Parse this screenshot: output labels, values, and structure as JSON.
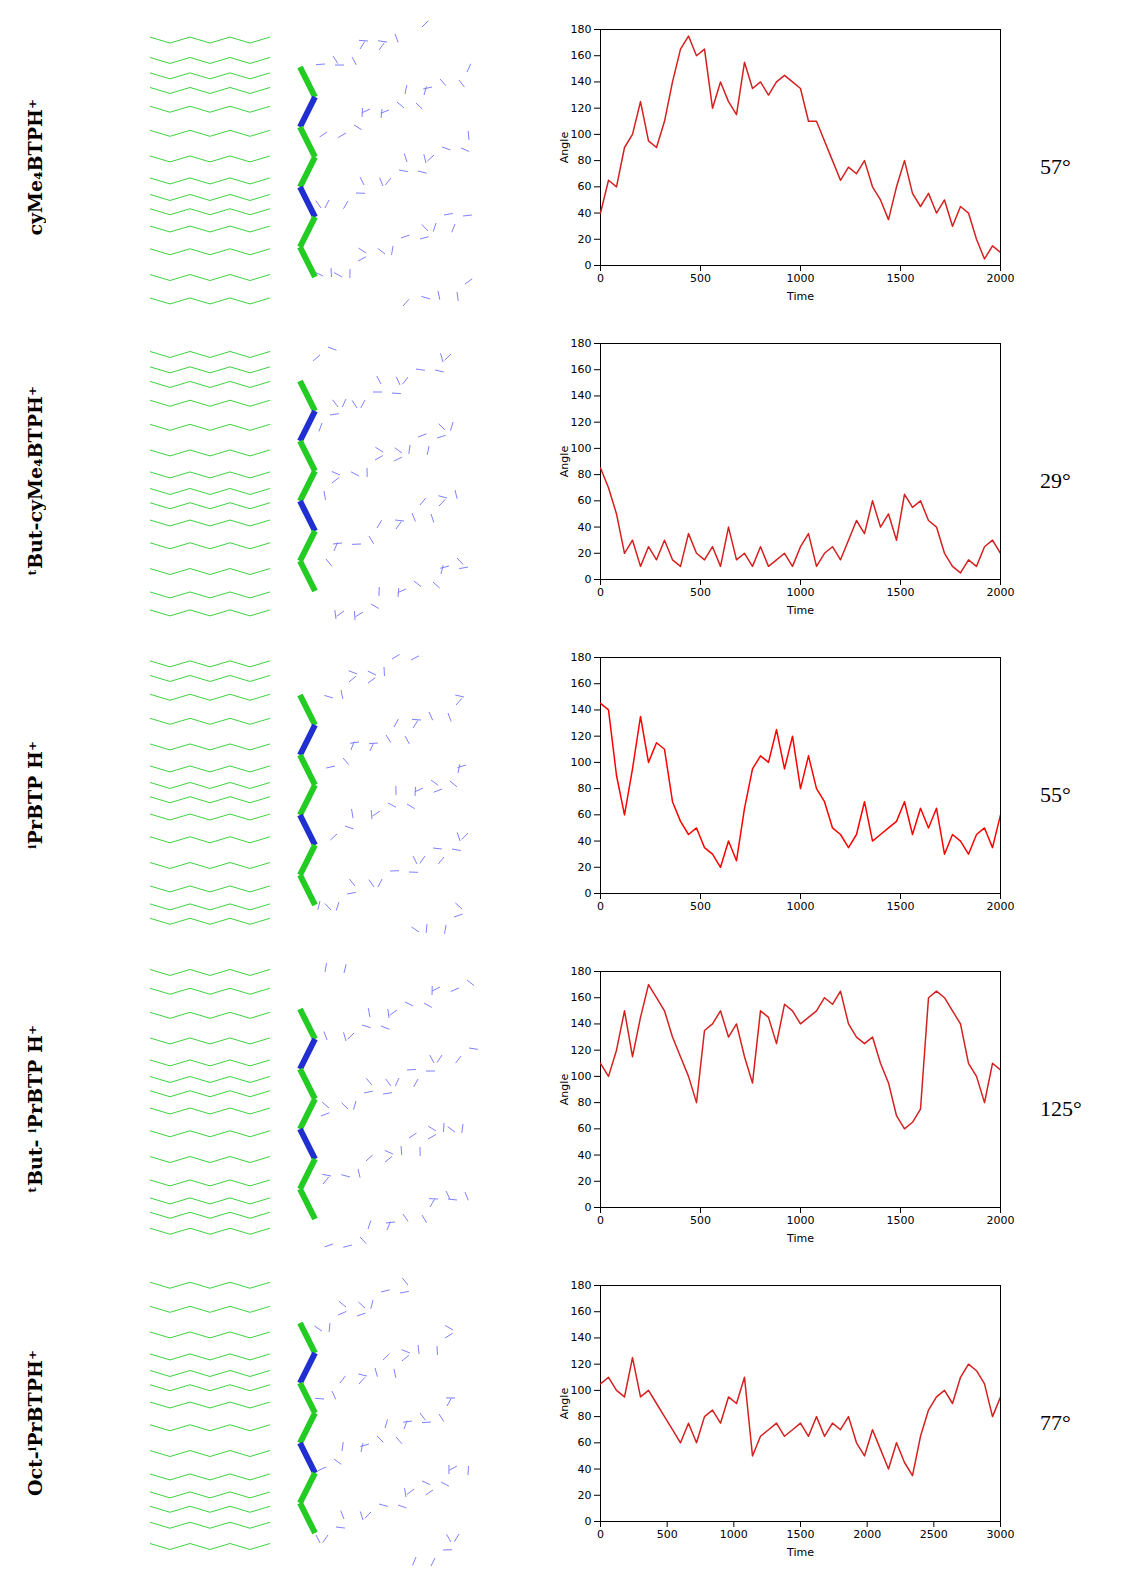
{
  "chart_data": [
    {
      "type": "line",
      "title": "cyMe₄BTPH⁺",
      "annotation": "57°",
      "xlabel": "Time",
      "ylabel": "Angle",
      "color": "#d62020",
      "xlim": [
        0,
        2000
      ],
      "xticks": [
        0,
        500,
        1000,
        1500,
        2000
      ],
      "ylim": [
        0,
        180
      ],
      "yticks": [
        0,
        20,
        40,
        60,
        80,
        100,
        120,
        140,
        160,
        180
      ],
      "x": [
        0,
        40,
        80,
        120,
        160,
        200,
        240,
        280,
        320,
        360,
        400,
        440,
        480,
        520,
        560,
        600,
        640,
        680,
        720,
        760,
        800,
        840,
        880,
        920,
        960,
        1000,
        1040,
        1080,
        1120,
        1160,
        1200,
        1240,
        1280,
        1320,
        1360,
        1400,
        1440,
        1480,
        1520,
        1560,
        1600,
        1640,
        1680,
        1720,
        1760,
        1800,
        1840,
        1880,
        1920,
        1960,
        2000
      ],
      "values": [
        40,
        65,
        60,
        90,
        100,
        125,
        95,
        90,
        110,
        140,
        165,
        175,
        160,
        165,
        120,
        140,
        125,
        115,
        155,
        135,
        140,
        130,
        140,
        145,
        140,
        135,
        110,
        110,
        95,
        80,
        65,
        75,
        70,
        80,
        60,
        50,
        35,
        60,
        80,
        55,
        45,
        55,
        40,
        50,
        30,
        45,
        40,
        20,
        5,
        15,
        10
      ]
    },
    {
      "type": "line",
      "title": "ᵗBut-cyMe₄BTPH⁺",
      "annotation": "29°",
      "xlabel": "Time",
      "ylabel": "Angle",
      "color": "#d62020",
      "xlim": [
        0,
        2000
      ],
      "xticks": [
        0,
        500,
        1000,
        1500,
        2000
      ],
      "ylim": [
        0,
        180
      ],
      "yticks": [
        0,
        20,
        40,
        60,
        80,
        100,
        120,
        140,
        160,
        180
      ],
      "x": [
        0,
        40,
        80,
        120,
        160,
        200,
        240,
        280,
        320,
        360,
        400,
        440,
        480,
        520,
        560,
        600,
        640,
        680,
        720,
        760,
        800,
        840,
        880,
        920,
        960,
        1000,
        1040,
        1080,
        1120,
        1160,
        1200,
        1240,
        1280,
        1320,
        1360,
        1400,
        1440,
        1480,
        1520,
        1560,
        1600,
        1640,
        1680,
        1720,
        1760,
        1800,
        1840,
        1880,
        1920,
        1960,
        2000
      ],
      "values": [
        85,
        70,
        50,
        20,
        30,
        10,
        25,
        15,
        30,
        15,
        10,
        35,
        20,
        15,
        25,
        10,
        40,
        15,
        20,
        10,
        25,
        10,
        15,
        20,
        10,
        25,
        35,
        10,
        20,
        25,
        15,
        30,
        45,
        35,
        60,
        40,
        50,
        30,
        65,
        55,
        60,
        45,
        40,
        20,
        10,
        5,
        15,
        10,
        25,
        30,
        20
      ]
    },
    {
      "type": "line",
      "title": "ⁱPrBTP H⁺",
      "annotation": "55°",
      "color": "#ff0000",
      "xlim": [
        0,
        2000
      ],
      "xticks": [
        0,
        500,
        1000,
        1500,
        2000
      ],
      "ylim": [
        0,
        180
      ],
      "yticks": [
        0,
        20,
        40,
        60,
        80,
        100,
        120,
        140,
        160,
        180
      ],
      "x": [
        0,
        40,
        80,
        120,
        160,
        200,
        240,
        280,
        320,
        360,
        400,
        440,
        480,
        520,
        560,
        600,
        640,
        680,
        720,
        760,
        800,
        840,
        880,
        920,
        960,
        1000,
        1040,
        1080,
        1120,
        1160,
        1200,
        1240,
        1280,
        1320,
        1360,
        1400,
        1440,
        1480,
        1520,
        1560,
        1600,
        1640,
        1680,
        1720,
        1760,
        1800,
        1840,
        1880,
        1920,
        1960,
        2000
      ],
      "values": [
        145,
        140,
        90,
        60,
        95,
        135,
        100,
        115,
        110,
        70,
        55,
        45,
        50,
        35,
        30,
        20,
        40,
        25,
        65,
        95,
        105,
        100,
        125,
        95,
        120,
        80,
        105,
        80,
        70,
        50,
        45,
        35,
        45,
        70,
        40,
        45,
        50,
        55,
        70,
        45,
        65,
        50,
        65,
        30,
        45,
        40,
        30,
        45,
        50,
        35,
        60
      ]
    },
    {
      "type": "line",
      "title": "ᵗBut- ⁱPrBTP H⁺",
      "annotation": "125°",
      "xlabel": "Time",
      "ylabel": "Angle",
      "color": "#d62020",
      "xlim": [
        0,
        2000
      ],
      "xticks": [
        0,
        500,
        1000,
        1500,
        2000
      ],
      "ylim": [
        0,
        180
      ],
      "yticks": [
        0,
        20,
        40,
        60,
        80,
        100,
        120,
        140,
        160,
        180
      ],
      "x": [
        0,
        40,
        80,
        120,
        160,
        200,
        240,
        280,
        320,
        360,
        400,
        440,
        480,
        520,
        560,
        600,
        640,
        680,
        720,
        760,
        800,
        840,
        880,
        920,
        960,
        1000,
        1040,
        1080,
        1120,
        1160,
        1200,
        1240,
        1280,
        1320,
        1360,
        1400,
        1440,
        1480,
        1520,
        1560,
        1600,
        1640,
        1680,
        1720,
        1760,
        1800,
        1840,
        1880,
        1920,
        1960,
        2000
      ],
      "values": [
        110,
        100,
        120,
        150,
        115,
        145,
        170,
        160,
        150,
        130,
        115,
        100,
        80,
        135,
        140,
        150,
        130,
        140,
        115,
        95,
        150,
        145,
        125,
        155,
        150,
        140,
        145,
        150,
        160,
        155,
        165,
        140,
        130,
        125,
        130,
        110,
        95,
        70,
        60,
        65,
        75,
        160,
        165,
        160,
        150,
        140,
        110,
        100,
        80,
        110,
        105
      ]
    },
    {
      "type": "line",
      "title": "Oct-ⁱPrBTPH⁺",
      "annotation": "77°",
      "xlabel": "Time",
      "ylabel": "Angle",
      "color": "#d62020",
      "xlim": [
        0,
        3000
      ],
      "xticks": [
        0,
        500,
        1000,
        1500,
        2000,
        2500,
        3000
      ],
      "ylim": [
        0,
        180
      ],
      "yticks": [
        0,
        20,
        40,
        60,
        80,
        100,
        120,
        140,
        160,
        180
      ],
      "x": [
        0,
        60,
        120,
        180,
        240,
        300,
        360,
        420,
        480,
        540,
        600,
        660,
        720,
        780,
        840,
        900,
        960,
        1020,
        1080,
        1140,
        1200,
        1260,
        1320,
        1380,
        1440,
        1500,
        1560,
        1620,
        1680,
        1740,
        1800,
        1860,
        1920,
        1980,
        2040,
        2100,
        2160,
        2220,
        2280,
        2340,
        2400,
        2460,
        2520,
        2580,
        2640,
        2700,
        2760,
        2820,
        2880,
        2940,
        3000
      ],
      "values": [
        105,
        110,
        100,
        95,
        125,
        95,
        100,
        90,
        80,
        70,
        60,
        75,
        60,
        80,
        85,
        75,
        95,
        90,
        110,
        50,
        65,
        70,
        75,
        65,
        70,
        75,
        65,
        80,
        65,
        75,
        70,
        80,
        60,
        50,
        70,
        55,
        40,
        60,
        45,
        35,
        65,
        85,
        95,
        100,
        90,
        110,
        120,
        115,
        105,
        80,
        95
      ]
    }
  ]
}
